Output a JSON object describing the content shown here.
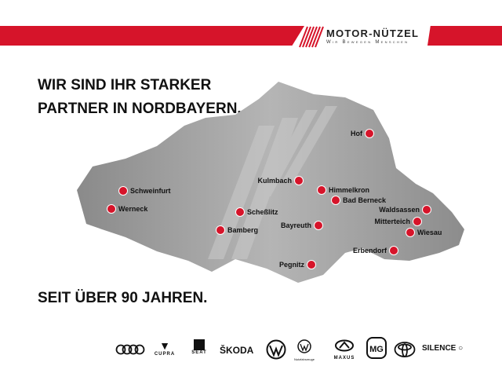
{
  "header": {
    "brand": "MOTOR-NÜTZEL",
    "tagline": "Wir Bewegen Menschen",
    "accent": "#d6142a"
  },
  "headline": "WIR SIND IHR STARKER PARTNER IN NORDBAYERN.",
  "subheadline": "SEIT ÜBER 90 JAHREN.",
  "locations": [
    {
      "name": "Schweinfurt"
    },
    {
      "name": "Werneck"
    },
    {
      "name": "Scheßlitz"
    },
    {
      "name": "Bamberg"
    },
    {
      "name": "Kulmbach"
    },
    {
      "name": "Himmelkron"
    },
    {
      "name": "Bad Berneck"
    },
    {
      "name": "Bayreuth"
    },
    {
      "name": "Pegnitz"
    },
    {
      "name": "Hof"
    },
    {
      "name": "Waldsassen"
    },
    {
      "name": "Mitterteich"
    },
    {
      "name": "Wiesau"
    },
    {
      "name": "Erbendorf"
    }
  ],
  "brands": [
    "Audi",
    "CUPRA",
    "SEAT",
    "ŠKODA",
    "Volkswagen",
    "Nutzfahrzeuge",
    "MAXUS",
    "MG",
    "Toyota",
    "SILENCE"
  ]
}
